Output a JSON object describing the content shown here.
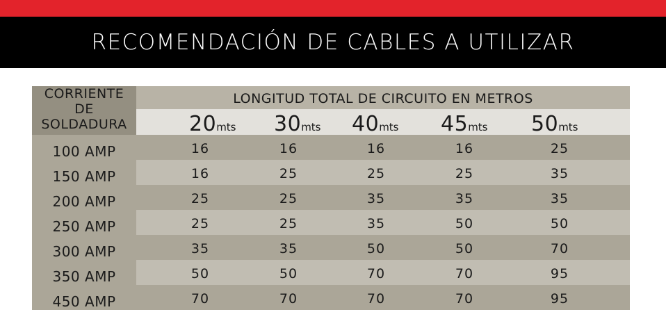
{
  "title": "RECOMENDACIÓN DE CABLES A UTILIZAR",
  "table": {
    "corner_header": [
      "CORRIENTE",
      "DE",
      "SOLDADURA"
    ],
    "length_header": "LONGITUD TOTAL DE CIRCUITO EN METROS",
    "unit": "mts",
    "lengths": [
      "20",
      "30",
      "40",
      "45",
      "50"
    ],
    "rows": [
      {
        "label": "100 AMP",
        "values": [
          "16",
          "16",
          "16",
          "16",
          "25"
        ]
      },
      {
        "label": "150 AMP",
        "values": [
          "16",
          "25",
          "25",
          "25",
          "35"
        ]
      },
      {
        "label": "200 AMP",
        "values": [
          "25",
          "25",
          "35",
          "35",
          "35"
        ]
      },
      {
        "label": "250 AMP",
        "values": [
          "25",
          "25",
          "35",
          "50",
          "50"
        ]
      },
      {
        "label": "300 AMP",
        "values": [
          "35",
          "35",
          "50",
          "50",
          "70"
        ]
      },
      {
        "label": "350 AMP",
        "values": [
          "50",
          "50",
          "70",
          "70",
          "95"
        ]
      },
      {
        "label": "450 AMP",
        "values": [
          "70",
          "70",
          "70",
          "70",
          "95"
        ]
      }
    ]
  },
  "colors": {
    "top_stripe": "#e3232b",
    "title_band": "#000000",
    "title_text": "#ffffff",
    "corner_header_bg": "#948f81",
    "length_header_bg": "#b8b3a6",
    "lengths_row_bg": "#e3e1dc",
    "row_dark": "#aba698",
    "row_light": "#c1bdb2"
  }
}
